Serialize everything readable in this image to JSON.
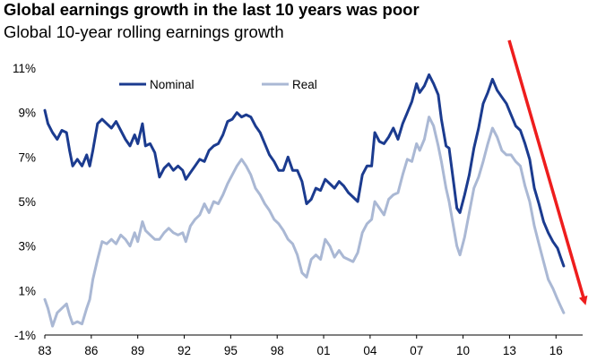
{
  "chart_data": {
    "type": "line",
    "title": "Global earnings growth in the last 10 years was poor",
    "subtitle": "Global 10-year rolling earnings growth",
    "xlabel": "",
    "ylabel": "",
    "x_ticks": [
      "83",
      "86",
      "89",
      "92",
      "95",
      "98",
      "01",
      "04",
      "07",
      "10",
      "13",
      "16"
    ],
    "y_ticks": [
      "-1%",
      "1%",
      "3%",
      "5%",
      "7%",
      "9%",
      "11%"
    ],
    "ylim": [
      -1,
      11
    ],
    "xlim": [
      1983,
      2018.3
    ],
    "legend_position": "top",
    "grid": false,
    "colors": {
      "nominal": "#1b3b8f",
      "real": "#aab8d4",
      "arrow": "#ee1d1d"
    },
    "series": [
      {
        "name": "Nominal",
        "points": [
          [
            1983.0,
            9.1
          ],
          [
            1983.2,
            8.5
          ],
          [
            1983.5,
            8.1
          ],
          [
            1983.8,
            7.8
          ],
          [
            1984.1,
            8.2
          ],
          [
            1984.4,
            8.1
          ],
          [
            1984.6,
            7.3
          ],
          [
            1984.8,
            6.6
          ],
          [
            1985.1,
            6.9
          ],
          [
            1985.4,
            6.6
          ],
          [
            1985.7,
            7.1
          ],
          [
            1985.9,
            6.6
          ],
          [
            1986.1,
            7.3
          ],
          [
            1986.4,
            8.5
          ],
          [
            1986.7,
            8.7
          ],
          [
            1987.0,
            8.5
          ],
          [
            1987.3,
            8.3
          ],
          [
            1987.6,
            8.6
          ],
          [
            1987.9,
            8.2
          ],
          [
            1988.2,
            7.8
          ],
          [
            1988.5,
            7.5
          ],
          [
            1988.8,
            8.0
          ],
          [
            1989.0,
            7.6
          ],
          [
            1989.3,
            8.5
          ],
          [
            1989.5,
            7.5
          ],
          [
            1989.8,
            7.6
          ],
          [
            1990.1,
            7.2
          ],
          [
            1990.4,
            6.1
          ],
          [
            1990.7,
            6.5
          ],
          [
            1991.0,
            6.7
          ],
          [
            1991.3,
            6.4
          ],
          [
            1991.6,
            6.6
          ],
          [
            1991.9,
            6.4
          ],
          [
            1992.1,
            6.0
          ],
          [
            1992.4,
            6.3
          ],
          [
            1992.7,
            6.6
          ],
          [
            1993.0,
            6.9
          ],
          [
            1993.3,
            6.8
          ],
          [
            1993.6,
            7.3
          ],
          [
            1993.9,
            7.5
          ],
          [
            1994.2,
            7.6
          ],
          [
            1994.5,
            8.0
          ],
          [
            1994.8,
            8.6
          ],
          [
            1995.1,
            8.7
          ],
          [
            1995.4,
            9.0
          ],
          [
            1995.7,
            8.8
          ],
          [
            1996.0,
            8.9
          ],
          [
            1996.3,
            8.8
          ],
          [
            1996.6,
            8.4
          ],
          [
            1996.9,
            8.1
          ],
          [
            1997.2,
            7.6
          ],
          [
            1997.5,
            7.1
          ],
          [
            1997.8,
            6.8
          ],
          [
            1998.1,
            6.4
          ],
          [
            1998.4,
            6.4
          ],
          [
            1998.7,
            7.0
          ],
          [
            1999.0,
            6.4
          ],
          [
            1999.3,
            6.4
          ],
          [
            1999.6,
            5.9
          ],
          [
            1999.9,
            4.9
          ],
          [
            2000.2,
            5.1
          ],
          [
            2000.5,
            5.6
          ],
          [
            2000.8,
            5.5
          ],
          [
            2001.1,
            6.0
          ],
          [
            2001.4,
            5.8
          ],
          [
            2001.7,
            5.6
          ],
          [
            2002.0,
            5.9
          ],
          [
            2002.3,
            5.7
          ],
          [
            2002.6,
            5.4
          ],
          [
            2002.9,
            5.2
          ],
          [
            2003.2,
            5.0
          ],
          [
            2003.5,
            6.2
          ],
          [
            2003.8,
            6.6
          ],
          [
            2004.1,
            6.6
          ],
          [
            2004.3,
            8.1
          ],
          [
            2004.6,
            7.7
          ],
          [
            2004.9,
            7.6
          ],
          [
            2005.2,
            7.9
          ],
          [
            2005.5,
            8.3
          ],
          [
            2005.8,
            7.8
          ],
          [
            2006.1,
            8.5
          ],
          [
            2006.4,
            9.0
          ],
          [
            2006.7,
            9.5
          ],
          [
            2007.0,
            10.3
          ],
          [
            2007.2,
            9.9
          ],
          [
            2007.5,
            10.2
          ],
          [
            2007.8,
            10.7
          ],
          [
            2008.1,
            10.3
          ],
          [
            2008.4,
            9.8
          ],
          [
            2008.6,
            8.7
          ],
          [
            2008.9,
            7.5
          ],
          [
            2009.1,
            7.4
          ],
          [
            2009.4,
            5.8
          ],
          [
            2009.6,
            4.7
          ],
          [
            2009.8,
            4.5
          ],
          [
            2010.1,
            5.3
          ],
          [
            2010.4,
            6.2
          ],
          [
            2010.7,
            7.4
          ],
          [
            2011.0,
            8.3
          ],
          [
            2011.3,
            9.4
          ],
          [
            2011.6,
            9.9
          ],
          [
            2011.9,
            10.5
          ],
          [
            2012.2,
            10.0
          ],
          [
            2012.5,
            9.7
          ],
          [
            2012.8,
            9.4
          ],
          [
            2013.1,
            8.9
          ],
          [
            2013.4,
            8.4
          ],
          [
            2013.7,
            8.2
          ],
          [
            2014.0,
            7.6
          ],
          [
            2014.3,
            6.9
          ],
          [
            2014.6,
            5.6
          ],
          [
            2014.9,
            4.9
          ],
          [
            2015.2,
            4.1
          ],
          [
            2015.5,
            3.6
          ],
          [
            2015.8,
            3.2
          ],
          [
            2016.1,
            2.9
          ],
          [
            2016.3,
            2.5
          ],
          [
            2016.5,
            2.1
          ]
        ]
      },
      {
        "name": "Real",
        "points": [
          [
            1983.0,
            0.6
          ],
          [
            1983.2,
            0.2
          ],
          [
            1983.5,
            -0.6
          ],
          [
            1983.8,
            0.0
          ],
          [
            1984.1,
            0.2
          ],
          [
            1984.4,
            0.4
          ],
          [
            1984.6,
            -0.1
          ],
          [
            1984.8,
            -0.5
          ],
          [
            1985.1,
            -0.4
          ],
          [
            1985.4,
            -0.5
          ],
          [
            1985.7,
            0.2
          ],
          [
            1985.9,
            0.6
          ],
          [
            1986.1,
            1.5
          ],
          [
            1986.4,
            2.4
          ],
          [
            1986.7,
            3.2
          ],
          [
            1987.0,
            3.1
          ],
          [
            1987.3,
            3.3
          ],
          [
            1987.6,
            3.1
          ],
          [
            1987.9,
            3.5
          ],
          [
            1988.2,
            3.3
          ],
          [
            1988.5,
            3.0
          ],
          [
            1988.8,
            3.6
          ],
          [
            1989.0,
            3.2
          ],
          [
            1989.3,
            4.1
          ],
          [
            1989.5,
            3.7
          ],
          [
            1989.8,
            3.5
          ],
          [
            1990.1,
            3.3
          ],
          [
            1990.4,
            3.3
          ],
          [
            1990.7,
            3.6
          ],
          [
            1991.0,
            3.8
          ],
          [
            1991.3,
            3.6
          ],
          [
            1991.6,
            3.5
          ],
          [
            1991.9,
            3.6
          ],
          [
            1992.1,
            3.2
          ],
          [
            1992.4,
            3.9
          ],
          [
            1992.7,
            4.2
          ],
          [
            1993.0,
            4.4
          ],
          [
            1993.3,
            4.9
          ],
          [
            1993.6,
            4.5
          ],
          [
            1993.9,
            5.0
          ],
          [
            1994.2,
            4.9
          ],
          [
            1994.5,
            5.3
          ],
          [
            1994.8,
            5.8
          ],
          [
            1995.1,
            6.2
          ],
          [
            1995.4,
            6.6
          ],
          [
            1995.7,
            6.9
          ],
          [
            1996.0,
            6.6
          ],
          [
            1996.3,
            6.2
          ],
          [
            1996.6,
            5.6
          ],
          [
            1996.9,
            5.3
          ],
          [
            1997.2,
            4.9
          ],
          [
            1997.5,
            4.6
          ],
          [
            1997.8,
            4.2
          ],
          [
            1998.1,
            4.0
          ],
          [
            1998.4,
            3.7
          ],
          [
            1998.7,
            3.3
          ],
          [
            1999.0,
            3.1
          ],
          [
            1999.3,
            2.6
          ],
          [
            1999.6,
            1.8
          ],
          [
            1999.9,
            1.6
          ],
          [
            2000.2,
            2.4
          ],
          [
            2000.5,
            2.6
          ],
          [
            2000.8,
            2.4
          ],
          [
            2001.1,
            3.3
          ],
          [
            2001.4,
            3.0
          ],
          [
            2001.7,
            2.5
          ],
          [
            2002.0,
            2.8
          ],
          [
            2002.3,
            2.5
          ],
          [
            2002.6,
            2.4
          ],
          [
            2002.9,
            2.3
          ],
          [
            2003.2,
            2.7
          ],
          [
            2003.5,
            3.6
          ],
          [
            2003.8,
            4.0
          ],
          [
            2004.1,
            4.2
          ],
          [
            2004.3,
            5.0
          ],
          [
            2004.6,
            4.7
          ],
          [
            2004.9,
            4.4
          ],
          [
            2005.2,
            5.1
          ],
          [
            2005.5,
            5.3
          ],
          [
            2005.8,
            5.4
          ],
          [
            2006.1,
            6.2
          ],
          [
            2006.4,
            6.9
          ],
          [
            2006.7,
            6.8
          ],
          [
            2007.0,
            7.6
          ],
          [
            2007.2,
            7.3
          ],
          [
            2007.5,
            7.8
          ],
          [
            2007.8,
            8.8
          ],
          [
            2008.1,
            8.4
          ],
          [
            2008.4,
            7.5
          ],
          [
            2008.6,
            6.8
          ],
          [
            2008.9,
            5.6
          ],
          [
            2009.1,
            5.0
          ],
          [
            2009.4,
            3.8
          ],
          [
            2009.6,
            3.0
          ],
          [
            2009.8,
            2.6
          ],
          [
            2010.1,
            3.4
          ],
          [
            2010.4,
            4.5
          ],
          [
            2010.7,
            5.6
          ],
          [
            2011.0,
            6.1
          ],
          [
            2011.3,
            6.8
          ],
          [
            2011.6,
            7.6
          ],
          [
            2011.9,
            8.3
          ],
          [
            2012.2,
            7.9
          ],
          [
            2012.5,
            7.3
          ],
          [
            2012.8,
            7.1
          ],
          [
            2013.1,
            7.1
          ],
          [
            2013.4,
            6.8
          ],
          [
            2013.7,
            6.6
          ],
          [
            2014.0,
            5.7
          ],
          [
            2014.3,
            5.0
          ],
          [
            2014.6,
            3.9
          ],
          [
            2014.9,
            3.1
          ],
          [
            2015.2,
            2.3
          ],
          [
            2015.5,
            1.5
          ],
          [
            2015.8,
            1.1
          ],
          [
            2016.1,
            0.6
          ],
          [
            2016.3,
            0.3
          ],
          [
            2016.5,
            0.0
          ]
        ]
      }
    ],
    "annotation": "downward-red-arrow"
  }
}
